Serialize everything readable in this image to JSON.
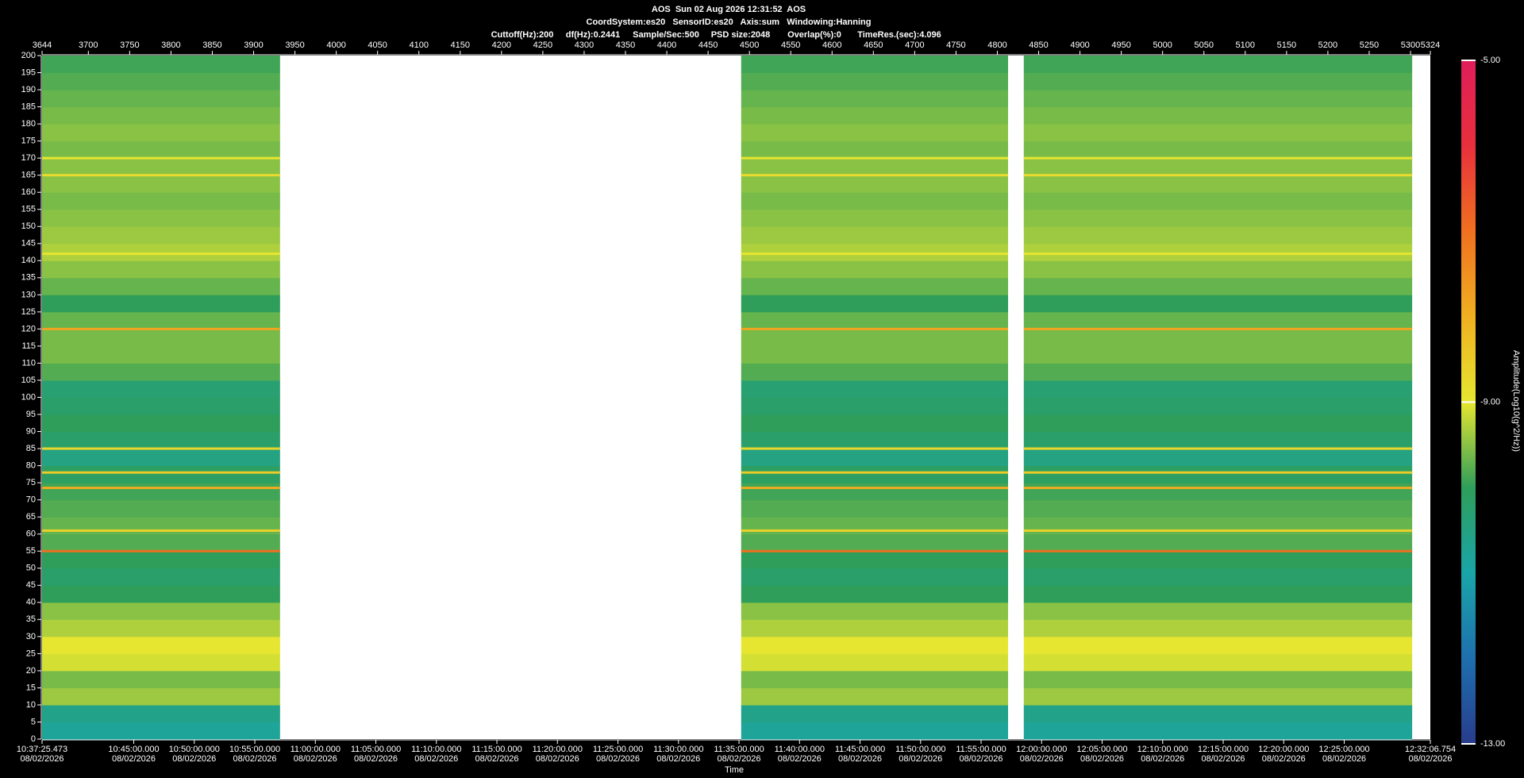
{
  "chart_data": {
    "type": "spectrogram",
    "header_lines": [
      "AOS  Sun 02 Aug 2026 12:31:52  AOS",
      "CoordSystem:es20   SensorID:es20   Axis:sum   Windowing:Hanning"
    ],
    "params": [
      "Cuttoff(Hz):200",
      "df(Hz):0.2441",
      "Sample/Sec:500",
      "PSD size:2048",
      "Overlap(%):0",
      "TimeRes.(sec):4.096"
    ],
    "x_label": "Time",
    "colorbar_label": "Amplitude(Log10(g^2/Hz))",
    "xlim": [
      3644,
      5324
    ],
    "xticks": [
      3644,
      3700,
      3750,
      3800,
      3850,
      3900,
      3950,
      4000,
      4050,
      4100,
      4150,
      4200,
      4250,
      4300,
      4350,
      4400,
      4450,
      4500,
      4550,
      4600,
      4650,
      4700,
      4750,
      4800,
      4850,
      4900,
      4950,
      5000,
      5050,
      5100,
      5150,
      5200,
      5250,
      5300,
      5324
    ],
    "timelim": [
      38245.473,
      45126.754
    ],
    "time_ticks": [
      {
        "value": 38245.473,
        "label": "10:37:25.473",
        "date": "08/02/2026"
      },
      {
        "value": 38700,
        "label": "10:45:00.000",
        "date": "08/02/2026"
      },
      {
        "value": 39000,
        "label": "10:50:00.000",
        "date": "08/02/2026"
      },
      {
        "value": 39300,
        "label": "10:55:00.000",
        "date": "08/02/2026"
      },
      {
        "value": 39600,
        "label": "11:00:00.000",
        "date": "08/02/2026"
      },
      {
        "value": 39900,
        "label": "11:05:00.000",
        "date": "08/02/2026"
      },
      {
        "value": 40200,
        "label": "11:10:00.000",
        "date": "08/02/2026"
      },
      {
        "value": 40500,
        "label": "11:15:00.000",
        "date": "08/02/2026"
      },
      {
        "value": 40800,
        "label": "11:20:00.000",
        "date": "08/02/2026"
      },
      {
        "value": 41100,
        "label": "11:25:00.000",
        "date": "08/02/2026"
      },
      {
        "value": 41400,
        "label": "11:30:00.000",
        "date": "08/02/2026"
      },
      {
        "value": 41700,
        "label": "11:35:00.000",
        "date": "08/02/2026"
      },
      {
        "value": 42000,
        "label": "11:40:00.000",
        "date": "08/02/2026"
      },
      {
        "value": 42300,
        "label": "11:45:00.000",
        "date": "08/02/2026"
      },
      {
        "value": 42600,
        "label": "11:50:00.000",
        "date": "08/02/2026"
      },
      {
        "value": 42900,
        "label": "11:55:00.000",
        "date": "08/02/2026"
      },
      {
        "value": 43200,
        "label": "12:00:00.000",
        "date": "08/02/2026"
      },
      {
        "value": 43500,
        "label": "12:05:00.000",
        "date": "08/02/2026"
      },
      {
        "value": 43800,
        "label": "12:10:00.000",
        "date": "08/02/2026"
      },
      {
        "value": 44100,
        "label": "12:15:00.000",
        "date": "08/02/2026"
      },
      {
        "value": 44400,
        "label": "12:20:00.000",
        "date": "08/02/2026"
      },
      {
        "value": 44700,
        "label": "12:25:00.000",
        "date": "08/02/2026"
      },
      {
        "value": 45126.754,
        "label": "12:32:06.754",
        "date": "08/02/2026"
      }
    ],
    "ylim": [
      0,
      200
    ],
    "yticks": [
      0,
      5,
      10,
      15,
      20,
      25,
      30,
      35,
      40,
      45,
      50,
      55,
      60,
      65,
      70,
      75,
      80,
      85,
      90,
      95,
      100,
      105,
      110,
      115,
      120,
      125,
      130,
      135,
      140,
      145,
      150,
      155,
      160,
      165,
      170,
      175,
      180,
      185,
      190,
      195,
      200
    ],
    "clim": [
      -13,
      -5
    ],
    "cticks": [
      {
        "value": -13,
        "label": "-13.00"
      },
      {
        "value": -9,
        "label": "-9.00"
      },
      {
        "value": -5,
        "label": "-5.00"
      }
    ],
    "colormap": [
      "#283c8c",
      "#1e6fae",
      "#1aa5a8",
      "#2e9e5a",
      "#e6e630",
      "#f0b020",
      "#f07020",
      "#e8303c",
      "#e01e5a"
    ],
    "segments": [
      [
        3644,
        3932
      ],
      [
        4490,
        4813
      ],
      [
        4832,
        5302
      ]
    ],
    "bins": [
      0,
      5,
      10,
      15,
      20,
      25,
      30,
      35,
      40,
      45,
      50,
      55,
      60,
      65,
      70,
      75,
      80,
      85,
      90,
      95,
      100,
      105,
      110,
      115,
      120,
      125,
      130,
      135,
      140,
      145,
      150,
      155,
      160,
      165,
      170,
      175,
      180,
      185,
      190,
      195,
      200
    ],
    "profile": [
      -10.8,
      -10.6,
      -9.4,
      -9.6,
      -9.1,
      -9.0,
      -9.3,
      -9.5,
      -10.0,
      -10.2,
      -10.0,
      -9.8,
      -9.7,
      -9.8,
      -9.9,
      -10.1,
      -10.5,
      -10.2,
      -10.0,
      -10.2,
      -10.3,
      -9.8,
      -9.6,
      -9.6,
      -9.7,
      -10.0,
      -9.7,
      -9.5,
      -9.3,
      -9.4,
      -9.5,
      -9.6,
      -9.5,
      -9.5,
      -9.6,
      -9.5,
      -9.6,
      -9.7,
      -9.8,
      -9.9
    ],
    "lines": [
      {
        "freq": 170,
        "level": -9.0
      },
      {
        "freq": 165,
        "level": -8.8
      },
      {
        "freq": 142,
        "level": -9.0
      },
      {
        "freq": 120,
        "level": -7.8
      },
      {
        "freq": 85,
        "level": -8.7
      },
      {
        "freq": 78,
        "level": -8.5
      },
      {
        "freq": 73.5,
        "level": -7.9
      },
      {
        "freq": 61,
        "level": -8.6
      },
      {
        "freq": 55,
        "level": -7.0
      }
    ]
  }
}
